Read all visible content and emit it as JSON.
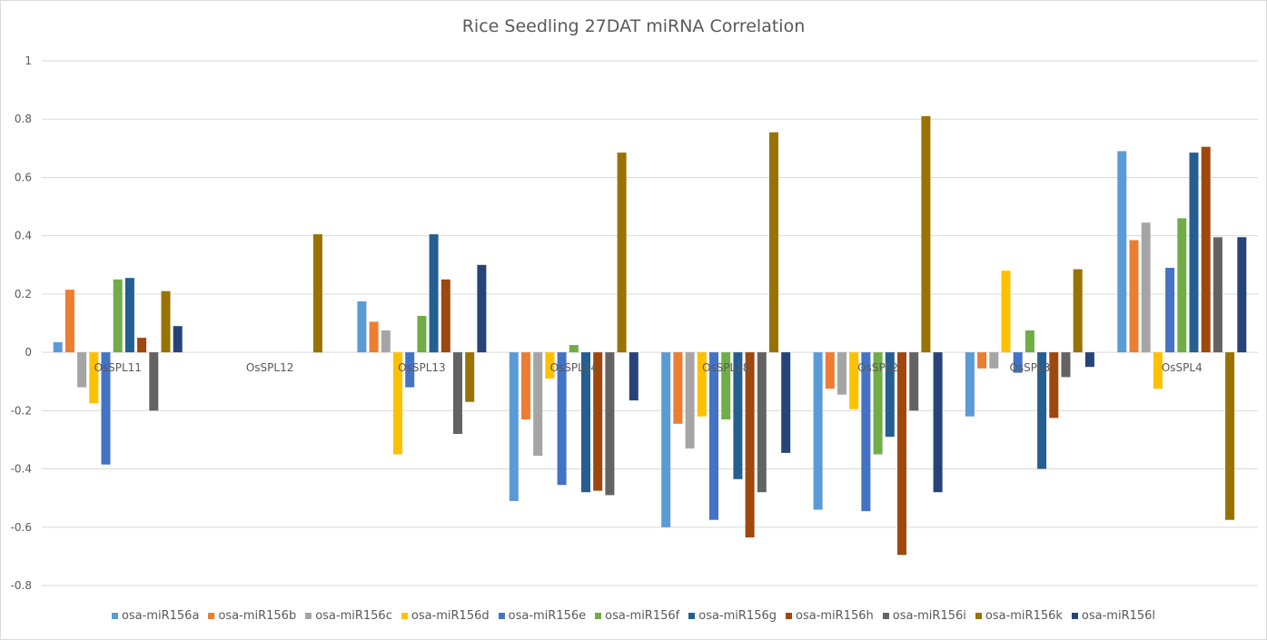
{
  "chart_data": {
    "type": "bar",
    "title": "Rice Seedling 27DAT miRNA Correlation",
    "xlabel": "",
    "ylabel": "",
    "ylim": [
      -0.8,
      1
    ],
    "yticks": [
      "1",
      "0.8",
      "0.6",
      "0.4",
      "0.2",
      "0",
      "-0.2",
      "-0.4",
      "-0.6",
      "-0.8"
    ],
    "ytick_values": [
      1,
      0.8,
      0.6,
      0.4,
      0.2,
      0,
      -0.2,
      -0.4,
      -0.6,
      -0.8
    ],
    "grid": true,
    "legend_position": "bottom",
    "categories": [
      "OsSPL11",
      "OsSPL12",
      "OsSPL13",
      "OsSPL14",
      "OsSPL18",
      "OsSPL2",
      "OsSPL3",
      "OsSPL4"
    ],
    "series": [
      {
        "name": "osa-miR156a",
        "color": "#5b9bd5",
        "values": [
          0.035,
          0,
          0.175,
          -0.51,
          -0.6,
          -0.54,
          -0.22,
          0.69
        ]
      },
      {
        "name": "osa-miR156b",
        "color": "#ed7d31",
        "values": [
          0.215,
          0,
          0.105,
          -0.23,
          -0.245,
          -0.125,
          -0.055,
          0.385
        ]
      },
      {
        "name": "osa-miR156c",
        "color": "#a5a5a5",
        "values": [
          -0.12,
          0,
          0.075,
          -0.355,
          -0.33,
          -0.145,
          -0.055,
          0.445
        ]
      },
      {
        "name": "osa-miR156d",
        "color": "#ffc000",
        "values": [
          -0.175,
          0,
          -0.35,
          -0.09,
          -0.22,
          -0.195,
          0.28,
          -0.125
        ]
      },
      {
        "name": "osa-miR156e",
        "color": "#4472c4",
        "values": [
          -0.385,
          0,
          -0.12,
          -0.455,
          -0.575,
          -0.545,
          -0.07,
          0.29
        ]
      },
      {
        "name": "osa-miR156f",
        "color": "#70ad47",
        "values": [
          0.25,
          0,
          0.125,
          0.025,
          -0.23,
          -0.35,
          0.075,
          0.46
        ]
      },
      {
        "name": "osa-miR156g",
        "color": "#255e91",
        "values": [
          0.255,
          0,
          0.405,
          -0.48,
          -0.435,
          -0.29,
          -0.4,
          0.685
        ]
      },
      {
        "name": "osa-miR156h",
        "color": "#9e480e",
        "values": [
          0.05,
          0,
          0.25,
          -0.475,
          -0.635,
          -0.695,
          -0.225,
          0.705
        ]
      },
      {
        "name": "osa-miR156i",
        "color": "#636363",
        "values": [
          -0.2,
          0,
          -0.28,
          -0.49,
          -0.48,
          -0.2,
          -0.085,
          0.395
        ]
      },
      {
        "name": "osa-miR156k",
        "color": "#997300",
        "values": [
          0.21,
          0.405,
          -0.17,
          0.685,
          0.755,
          0.81,
          0.285,
          -0.575
        ]
      },
      {
        "name": "osa-miR156l",
        "color": "#264478",
        "values": [
          0.09,
          0,
          0.3,
          -0.165,
          -0.345,
          -0.48,
          -0.05,
          0.395
        ]
      }
    ]
  }
}
